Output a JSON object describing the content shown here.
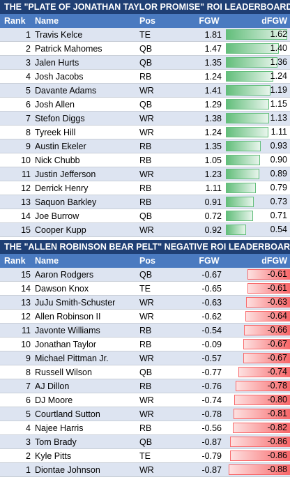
{
  "sections": [
    {
      "title": "THE \"PLATE OF JONATHAN TAYLOR PROMISE\" ROI LEADERBOARD",
      "headers": {
        "rank": "Rank",
        "name": "Name",
        "pos": "Pos",
        "fgw": "FGW",
        "dfgw": "dFGW"
      },
      "bar_type": "positive",
      "bar_color": "#63be7b",
      "rows": [
        {
          "rank": "1",
          "name": "Travis Kelce",
          "pos": "TE",
          "fgw": "1.81",
          "dfgw": "1.62",
          "level": 1.0
        },
        {
          "rank": "2",
          "name": "Patrick Mahomes",
          "pos": "QB",
          "fgw": "1.47",
          "dfgw": "1.40",
          "level": 0.86
        },
        {
          "rank": "3",
          "name": "Jalen Hurts",
          "pos": "QB",
          "fgw": "1.35",
          "dfgw": "1.36",
          "level": 0.84
        },
        {
          "rank": "4",
          "name": "Josh Jacobs",
          "pos": "RB",
          "fgw": "1.24",
          "dfgw": "1.24",
          "level": 0.77
        },
        {
          "rank": "5",
          "name": "Davante Adams",
          "pos": "WR",
          "fgw": "1.41",
          "dfgw": "1.19",
          "level": 0.73
        },
        {
          "rank": "6",
          "name": "Josh Allen",
          "pos": "QB",
          "fgw": "1.29",
          "dfgw": "1.15",
          "level": 0.71
        },
        {
          "rank": "7",
          "name": "Stefon Diggs",
          "pos": "WR",
          "fgw": "1.38",
          "dfgw": "1.13",
          "level": 0.7
        },
        {
          "rank": "8",
          "name": "Tyreek Hill",
          "pos": "WR",
          "fgw": "1.24",
          "dfgw": "1.11",
          "level": 0.69
        },
        {
          "rank": "9",
          "name": "Austin Ekeler",
          "pos": "RB",
          "fgw": "1.35",
          "dfgw": "0.93",
          "level": 0.57
        },
        {
          "rank": "10",
          "name": "Nick Chubb",
          "pos": "RB",
          "fgw": "1.05",
          "dfgw": "0.90",
          "level": 0.56
        },
        {
          "rank": "11",
          "name": "Justin Jefferson",
          "pos": "WR",
          "fgw": "1.23",
          "dfgw": "0.89",
          "level": 0.55
        },
        {
          "rank": "12",
          "name": "Derrick Henry",
          "pos": "RB",
          "fgw": "1.11",
          "dfgw": "0.79",
          "level": 0.49
        },
        {
          "rank": "13",
          "name": "Saquon Barkley",
          "pos": "RB",
          "fgw": "0.91",
          "dfgw": "0.73",
          "level": 0.45
        },
        {
          "rank": "14",
          "name": "Joe Burrow",
          "pos": "QB",
          "fgw": "0.72",
          "dfgw": "0.71",
          "level": 0.44
        },
        {
          "rank": "15",
          "name": "Cooper Kupp",
          "pos": "WR",
          "fgw": "0.92",
          "dfgw": "0.54",
          "level": 0.33
        }
      ]
    },
    {
      "title": "THE \"ALLEN ROBINSON BEAR PELT\" NEGATIVE ROI LEADERBOARD",
      "headers": {
        "rank": "Rank",
        "name": "Name",
        "pos": "Pos",
        "fgw": "FGW",
        "dfgw": "dFGW"
      },
      "bar_type": "negative",
      "bar_color": "#f8696b",
      "rows": [
        {
          "rank": "15",
          "name": "Aaron Rodgers",
          "pos": "QB",
          "fgw": "-0.67",
          "dfgw": "-0.61",
          "level": 0.69
        },
        {
          "rank": "14",
          "name": "Dawson Knox",
          "pos": "TE",
          "fgw": "-0.65",
          "dfgw": "-0.61",
          "level": 0.69
        },
        {
          "rank": "13",
          "name": "JuJu Smith-Schuster",
          "pos": "WR",
          "fgw": "-0.63",
          "dfgw": "-0.63",
          "level": 0.72
        },
        {
          "rank": "12",
          "name": "Allen Robinson II",
          "pos": "WR",
          "fgw": "-0.62",
          "dfgw": "-0.64",
          "level": 0.73
        },
        {
          "rank": "11",
          "name": "Javonte Williams",
          "pos": "RB",
          "fgw": "-0.54",
          "dfgw": "-0.66",
          "level": 0.75
        },
        {
          "rank": "10",
          "name": "Jonathan Taylor",
          "pos": "RB",
          "fgw": "-0.09",
          "dfgw": "-0.67",
          "level": 0.76
        },
        {
          "rank": "9",
          "name": "Michael Pittman Jr.",
          "pos": "WR",
          "fgw": "-0.57",
          "dfgw": "-0.67",
          "level": 0.76
        },
        {
          "rank": "8",
          "name": "Russell Wilson",
          "pos": "QB",
          "fgw": "-0.77",
          "dfgw": "-0.74",
          "level": 0.84
        },
        {
          "rank": "7",
          "name": "AJ Dillon",
          "pos": "RB",
          "fgw": "-0.76",
          "dfgw": "-0.78",
          "level": 0.89
        },
        {
          "rank": "6",
          "name": "DJ Moore",
          "pos": "WR",
          "fgw": "-0.74",
          "dfgw": "-0.80",
          "level": 0.91
        },
        {
          "rank": "5",
          "name": "Courtland Sutton",
          "pos": "WR",
          "fgw": "-0.78",
          "dfgw": "-0.81",
          "level": 0.92
        },
        {
          "rank": "4",
          "name": "Najee Harris",
          "pos": "RB",
          "fgw": "-0.56",
          "dfgw": "-0.82",
          "level": 0.93
        },
        {
          "rank": "3",
          "name": "Tom Brady",
          "pos": "QB",
          "fgw": "-0.87",
          "dfgw": "-0.86",
          "level": 0.98
        },
        {
          "rank": "2",
          "name": "Kyle Pitts",
          "pos": "TE",
          "fgw": "-0.79",
          "dfgw": "-0.86",
          "level": 0.98
        },
        {
          "rank": "1",
          "name": "Diontae Johnson",
          "pos": "WR",
          "fgw": "-0.87",
          "dfgw": "-0.88",
          "level": 1.0
        }
      ]
    }
  ]
}
